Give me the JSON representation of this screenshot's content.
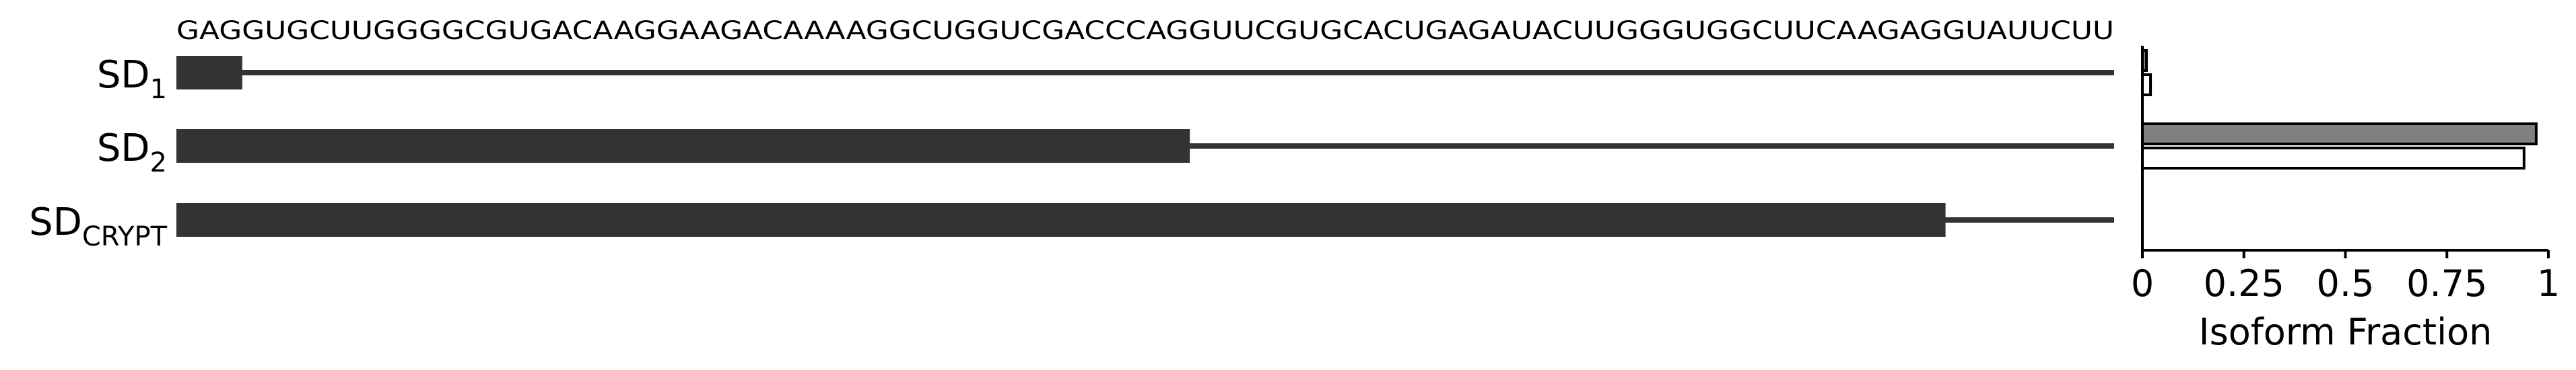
{
  "sequence": "GAGGUGCUUGGGGCGUGACAAGGAAGACAAAAGGCUGGUCGACCCAGGUUCGUGCACUGAGAUACUUGGGUGGCUUCAAGAGGUAUUCUU",
  "isoforms": [
    {
      "base": "SD",
      "sub": "1",
      "exon_end_fraction": 0.034
    },
    {
      "base": "SD",
      "sub": "2",
      "exon_end_fraction": 0.523
    },
    {
      "base": "SD",
      "sub": "CRYPT",
      "exon_end_fraction": 0.913
    }
  ],
  "colors": {
    "exon": "#333333",
    "bar_filled": "#808080",
    "bar_outline": "#000000",
    "bar_empty": "#ffffff"
  },
  "chart_data": {
    "type": "bar",
    "orientation": "horizontal",
    "categories": [
      "SD1",
      "SD2",
      "SDCRYPT"
    ],
    "series": [
      {
        "values": [
          0.01,
          0.97,
          0.0
        ],
        "style": "filled-gray"
      },
      {
        "values": [
          0.02,
          0.94,
          0.0
        ],
        "style": "outline-white"
      }
    ],
    "xlabel": "Isoform Fraction",
    "xlim": [
      0,
      1
    ],
    "xticks": [
      {
        "value": 0,
        "label": "0"
      },
      {
        "value": 0.25,
        "label": "0.25"
      },
      {
        "value": 0.5,
        "label": "0.5"
      },
      {
        "value": 0.75,
        "label": "0.75"
      },
      {
        "value": 1,
        "label": "1"
      }
    ],
    "grid": false
  }
}
